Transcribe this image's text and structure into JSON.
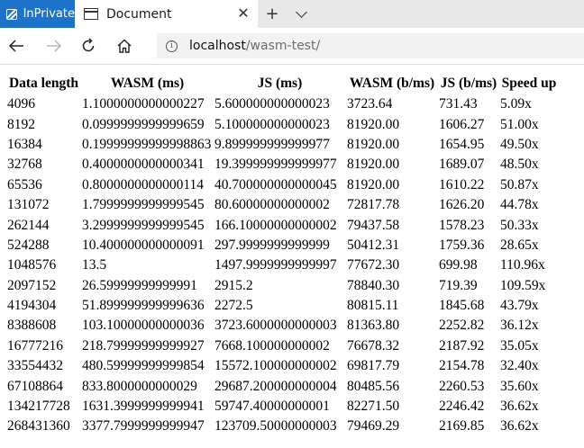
{
  "tabstrip": {
    "inprivate_label": "InPrivate",
    "tab_title": "Document",
    "close_glyph": "✕",
    "new_tab_glyph": "+"
  },
  "navbar": {
    "url_host": "localhost",
    "url_path": "/wasm-test/",
    "info_glyph": "i"
  },
  "table": {
    "headers": [
      "Data length",
      "WASM (ms)",
      "JS (ms)",
      "WASM (b/ms)",
      "JS (b/ms)",
      "Speed up"
    ],
    "rows": [
      [
        "4096",
        "1.1000000000000227",
        "5.600000000000023",
        "3723.64",
        "731.43",
        "5.09x"
      ],
      [
        "8192",
        "0.0999999999999659",
        "5.100000000000023",
        "81920.00",
        "1606.27",
        "51.00x"
      ],
      [
        "16384",
        "0.19999999999998863",
        "9.899999999999977",
        "81920.00",
        "1654.95",
        "49.50x"
      ],
      [
        "32768",
        "0.4000000000000341",
        "19.399999999999977",
        "81920.00",
        "1689.07",
        "48.50x"
      ],
      [
        "65536",
        "0.8000000000000114",
        "40.700000000000045",
        "81920.00",
        "1610.22",
        "50.87x"
      ],
      [
        "131072",
        "1.7999999999999545",
        "80.60000000000002",
        "72817.78",
        "1626.20",
        "44.78x"
      ],
      [
        "262144",
        "3.2999999999999545",
        "166.10000000000002",
        "79437.58",
        "1578.23",
        "50.33x"
      ],
      [
        "524288",
        "10.400000000000091",
        "297.9999999999999",
        "50412.31",
        "1759.36",
        "28.65x"
      ],
      [
        "1048576",
        "13.5",
        "1497.9999999999997",
        "77672.30",
        "699.98",
        "110.96x"
      ],
      [
        "2097152",
        "26.59999999999991",
        "2915.2",
        "78840.30",
        "719.39",
        "109.59x"
      ],
      [
        "4194304",
        "51.899999999999636",
        "2272.5",
        "80815.11",
        "1845.68",
        "43.79x"
      ],
      [
        "8388608",
        "103.10000000000036",
        "3723.6000000000003",
        "81363.80",
        "2252.82",
        "36.12x"
      ],
      [
        "16777216",
        "218.79999999999927",
        "7668.100000000002",
        "76678.32",
        "2187.92",
        "35.05x"
      ],
      [
        "33554432",
        "480.59999999999854",
        "15572.100000000002",
        "69817.79",
        "2154.78",
        "32.40x"
      ],
      [
        "67108864",
        "833.8000000000029",
        "29687.200000000004",
        "80485.56",
        "2260.53",
        "35.60x"
      ],
      [
        "134217728",
        "1631.3999999999941",
        "59747.40000000001",
        "82271.50",
        "2246.42",
        "36.62x"
      ],
      [
        "268431360",
        "3377.7999999999947",
        "123709.50000000003",
        "79469.29",
        "2169.85",
        "36.62x"
      ]
    ]
  },
  "colors": {
    "inprivate_bg": "#1d73c9",
    "tabstrip_bg": "#e8e8e8",
    "address_bg": "#f2f2f2"
  },
  "icons": [
    "inprivate-icon",
    "document-icon",
    "close-icon",
    "plus-icon",
    "chevron-down-icon",
    "back-arrow-icon",
    "forward-arrow-icon",
    "refresh-icon",
    "home-icon",
    "info-icon"
  ]
}
